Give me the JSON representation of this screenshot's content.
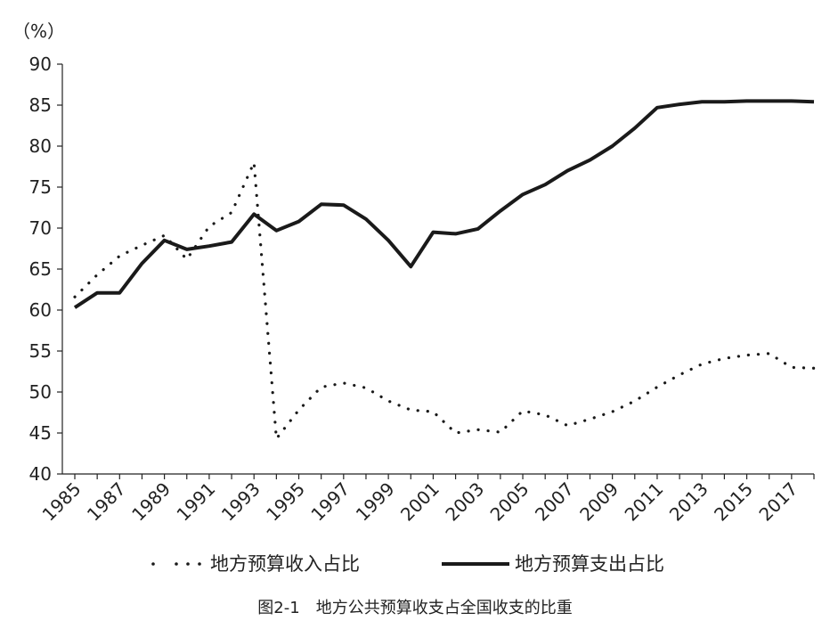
{
  "chart_data": {
    "type": "line",
    "ylabel": "（%）",
    "ylim": [
      40,
      90
    ],
    "yticks": [
      40,
      45,
      50,
      55,
      60,
      65,
      70,
      75,
      80,
      85,
      90
    ],
    "xlim": [
      1985,
      2018
    ],
    "xticks": [
      "1985",
      "1987",
      "1989",
      "1991",
      "1993",
      "1995",
      "1997",
      "1999",
      "2001",
      "2003",
      "2005",
      "2007",
      "2009",
      "2011",
      "2013",
      "2015",
      "2017"
    ],
    "grid": false,
    "legend_position": "bottom",
    "series": [
      {
        "name": "地方预算收入占比",
        "style": "dotted",
        "color": "#1a1a1a",
        "x": [
          1985,
          1986,
          1987,
          1988,
          1989,
          1990,
          1991,
          1992,
          1993,
          1994,
          1995,
          1996,
          1997,
          1998,
          1999,
          2000,
          2001,
          2002,
          2003,
          2004,
          2005,
          2006,
          2007,
          2008,
          2009,
          2010,
          2011,
          2012,
          2013,
          2014,
          2015,
          2016,
          2017,
          2018
        ],
        "values": [
          61.6,
          64.3,
          66.6,
          67.9,
          69.1,
          66.2,
          70.2,
          71.9,
          78.0,
          44.3,
          47.8,
          50.6,
          51.1,
          50.5,
          48.9,
          47.8,
          47.6,
          45.0,
          45.4,
          45.1,
          47.7,
          47.2,
          45.9,
          46.7,
          47.6,
          48.9,
          50.6,
          52.1,
          53.4,
          54.1,
          54.5,
          54.7,
          53.0,
          52.9
        ]
      },
      {
        "name": "地方预算支出占比",
        "style": "solid",
        "color": "#1a1a1a",
        "x": [
          1985,
          1986,
          1987,
          1988,
          1989,
          1990,
          1991,
          1992,
          1993,
          1994,
          1995,
          1996,
          1997,
          1998,
          1999,
          2000,
          2001,
          2002,
          2003,
          2004,
          2005,
          2006,
          2007,
          2008,
          2009,
          2010,
          2011,
          2012,
          2013,
          2014,
          2015,
          2016,
          2017,
          2018
        ],
        "values": [
          60.3,
          62.1,
          62.1,
          65.7,
          68.5,
          67.4,
          67.8,
          68.3,
          71.7,
          69.7,
          70.8,
          72.9,
          72.8,
          71.1,
          68.5,
          65.3,
          69.5,
          69.3,
          69.9,
          72.1,
          74.1,
          75.3,
          77.0,
          78.3,
          80.0,
          82.2,
          84.7,
          85.1,
          85.4,
          85.4,
          85.5,
          85.5,
          85.5,
          85.4
        ]
      }
    ]
  },
  "caption": "图2-1　地方公共预算收支占全国收支的比重"
}
